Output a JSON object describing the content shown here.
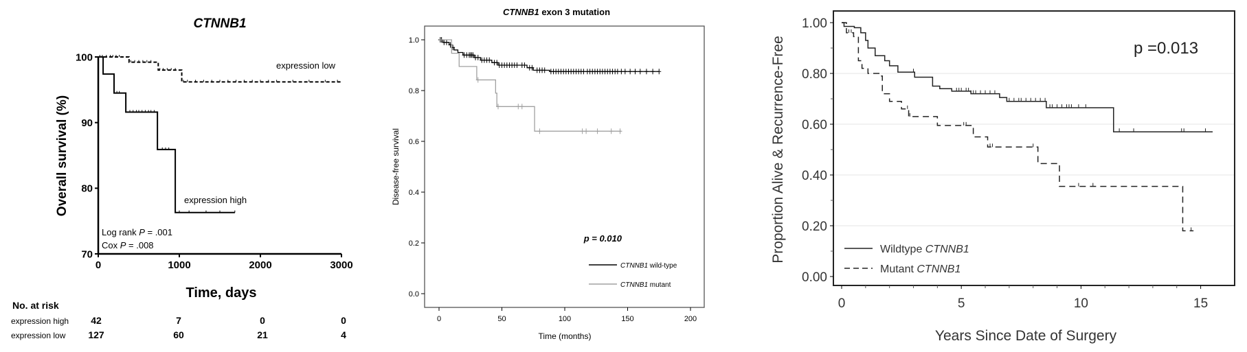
{
  "chart_data": [
    {
      "type": "line",
      "subtype": "kaplan-meier",
      "title": "CTNNB1",
      "xlabel": "Time, days",
      "ylabel": "Overall survival (%)",
      "xlim": [
        0,
        3000
      ],
      "ylim": [
        70,
        100
      ],
      "xticks": [
        "0",
        "1000",
        "2000",
        "3000"
      ],
      "yticks": [
        "70",
        "80",
        "90",
        "100"
      ],
      "grid": false,
      "series": [
        {
          "name": "expression high",
          "style": "solid",
          "color": "#000000",
          "steps": [
            [
              0,
              100
            ],
            [
              60,
              97.4
            ],
            [
              195,
              94.5
            ],
            [
              340,
              91.6
            ],
            [
              730,
              85.9
            ],
            [
              950,
              76.3
            ]
          ],
          "end": 1685,
          "censored": [
            230,
            260,
            390,
            430,
            470,
            500,
            540,
            580,
            620,
            650,
            690,
            790,
            830,
            870,
            1000,
            1120,
            1330,
            1500,
            1685
          ]
        },
        {
          "name": "expression low",
          "style": "dashed",
          "color": "#000000",
          "steps": [
            [
              0,
              100
            ],
            [
              380,
              99.2
            ],
            [
              740,
              98.0
            ],
            [
              1030,
              96.2
            ]
          ],
          "end": 3000,
          "censored": [
            20,
            50,
            100,
            150,
            180,
            220,
            260,
            400,
            450,
            500,
            550,
            600,
            650,
            760,
            800,
            850,
            900,
            950,
            1050,
            1100,
            1200,
            1300,
            1400,
            1500,
            1600,
            1700,
            1800,
            1900,
            2000,
            2100,
            2200,
            2400,
            2600,
            2800,
            2950
          ]
        }
      ],
      "annotations": {
        "log_rank_prefix": "Log rank ",
        "log_rank_p_symbol": "P",
        "log_rank_value": " = .001",
        "cox_prefix": "Cox ",
        "cox_p_symbol": "P",
        "cox_value": " = .008"
      },
      "risk_table": {
        "title": "No. at risk",
        "rows": [
          {
            "label": "expression high",
            "values": [
              "42",
              "7",
              "0",
              "0"
            ]
          },
          {
            "label": "expression low",
            "values": [
              "127",
              "60",
              "21",
              "4"
            ]
          }
        ]
      }
    },
    {
      "type": "line",
      "subtype": "kaplan-meier",
      "title_italic": "CTNNB1",
      "title_rest": " exon 3 mutation",
      "xlabel": "Time (months)",
      "ylabel": "Disease-free survival",
      "xlim": [
        0,
        200
      ],
      "ylim": [
        0,
        1.0
      ],
      "xticks": [
        "0",
        "50",
        "100",
        "150",
        "200"
      ],
      "yticks": [
        "0.0",
        "0.2",
        "0.4",
        "0.6",
        "0.8",
        "1.0"
      ],
      "grid": false,
      "p_value": "p = 0.010",
      "legend_position": "bottom-right",
      "series": [
        {
          "name_italic": "CTNNB1",
          "name_rest": " wild-type",
          "color": "#000000",
          "steps": [
            [
              0,
              1
            ],
            [
              3,
              0.99
            ],
            [
              8,
              0.98
            ],
            [
              10,
              0.97
            ],
            [
              12,
              0.96
            ],
            [
              15,
              0.95
            ],
            [
              19,
              0.94
            ],
            [
              28,
              0.93
            ],
            [
              33,
              0.92
            ],
            [
              42,
              0.91
            ],
            [
              47,
              0.9
            ],
            [
              70,
              0.89
            ],
            [
              75,
              0.88
            ],
            [
              88,
              0.875
            ]
          ],
          "end": 175,
          "censored": [
            1,
            2,
            4,
            6,
            9,
            11,
            20,
            22,
            24,
            25,
            26,
            27,
            29,
            31,
            34,
            36,
            38,
            40,
            44,
            46,
            48,
            50,
            52,
            54,
            56,
            58,
            60,
            62,
            66,
            68,
            72,
            74,
            78,
            80,
            82,
            84,
            89,
            91,
            93,
            95,
            97,
            99,
            101,
            103,
            105,
            107,
            109,
            111,
            113,
            115,
            118,
            120,
            122,
            124,
            126,
            128,
            130,
            132,
            134,
            136,
            138,
            140,
            142,
            145,
            148,
            152,
            156,
            160,
            165,
            170,
            175
          ]
        },
        {
          "name_italic": "CTNNB1",
          "name_rest": " mutant",
          "color": "#a0a0a0",
          "steps": [
            [
              0,
              1
            ],
            [
              10,
              0.947
            ],
            [
              16,
              0.895
            ],
            [
              30,
              0.842
            ],
            [
              45,
              0.79
            ],
            [
              46,
              0.737
            ],
            [
              76,
              0.64
            ]
          ],
          "end": 145,
          "censored": [
            31,
            47,
            63,
            66,
            80,
            114,
            117,
            126,
            137,
            144
          ]
        }
      ]
    },
    {
      "type": "line",
      "subtype": "kaplan-meier",
      "xlabel": "Years Since Date of Surgery",
      "ylabel": "Proportion Alive & Recurrence-Free",
      "xlim": [
        0,
        15.5
      ],
      "ylim": [
        0,
        1.0
      ],
      "xticks": [
        "0",
        "5",
        "10",
        "15"
      ],
      "yticks": [
        "0.00",
        "0.20",
        "0.40",
        "0.60",
        "0.80",
        "1.00"
      ],
      "grid": true,
      "p_value": "p =0.013",
      "legend_position": "bottom-left",
      "series": [
        {
          "name_prefix": "Wildtype ",
          "name_italic": "CTNNB1",
          "style": "solid",
          "color": "#222222",
          "steps": [
            [
              0,
              1
            ],
            [
              0.1,
              0.985
            ],
            [
              0.53,
              0.98
            ],
            [
              0.8,
              0.96
            ],
            [
              1.0,
              0.93
            ],
            [
              1.1,
              0.9
            ],
            [
              1.4,
              0.87
            ],
            [
              1.8,
              0.85
            ],
            [
              2.0,
              0.83
            ],
            [
              2.35,
              0.805
            ],
            [
              3.05,
              0.785
            ],
            [
              3.8,
              0.75
            ],
            [
              4.1,
              0.74
            ],
            [
              4.6,
              0.73
            ],
            [
              5.4,
              0.72
            ],
            [
              6.6,
              0.705
            ],
            [
              6.9,
              0.69
            ],
            [
              8.55,
              0.665
            ],
            [
              11.36,
              0.57
            ]
          ],
          "end": 15.5,
          "censored": [
            3.0,
            4.8,
            4.9,
            5.0,
            5.2,
            5.3,
            5.4,
            5.5,
            5.6,
            5.8,
            6.0,
            6.2,
            6.4,
            6.6,
            7.0,
            7.2,
            7.4,
            7.5,
            7.7,
            7.9,
            8.1,
            8.3,
            8.5,
            8.7,
            8.8,
            9.0,
            9.2,
            9.4,
            9.5,
            9.6,
            9.9,
            10.2,
            11.6,
            12.2,
            14.2,
            14.3,
            15.2
          ]
        },
        {
          "name_prefix": "Mutant ",
          "name_italic": "CTNNB1",
          "style": "dashed",
          "color": "#222222",
          "steps": [
            [
              0,
              1
            ],
            [
              0.2,
              0.96
            ],
            [
              0.5,
              0.945
            ],
            [
              0.7,
              0.85
            ],
            [
              0.85,
              0.82
            ],
            [
              1.1,
              0.8
            ],
            [
              1.6,
              0.79
            ],
            [
              1.7,
              0.72
            ],
            [
              2.0,
              0.69
            ],
            [
              2.5,
              0.66
            ],
            [
              2.8,
              0.63
            ],
            [
              4.0,
              0.595
            ],
            [
              5.5,
              0.55
            ],
            [
              6.1,
              0.51
            ],
            [
              8.2,
              0.445
            ],
            [
              9.1,
              0.355
            ],
            [
              14.25,
              0.18
            ]
          ],
          "end": 14.7,
          "censored": [
            0.3,
            0.4,
            2.75,
            2.85,
            5.1,
            5.2,
            6.2,
            6.3,
            8.0,
            9.9,
            10.5,
            14.6
          ]
        }
      ]
    }
  ]
}
